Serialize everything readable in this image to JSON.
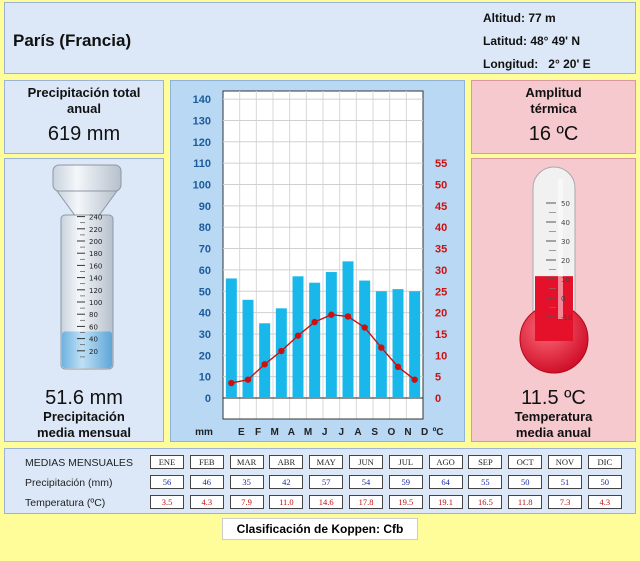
{
  "location": {
    "city": "París (Francia)",
    "altitud": "Altitud: 77 m",
    "latitud": "Latitud: 48° 49' N",
    "longitud": "Longitud:   2° 20' E"
  },
  "precip_total": {
    "label1": "Precipitación total",
    "label2": "anual",
    "value": "619 mm"
  },
  "amplitud": {
    "label1": "Amplitud",
    "label2": "térmica",
    "value": "16 ºC"
  },
  "precip_media": {
    "value": "51.6 mm",
    "label1": "Precipitación",
    "label2": "media mensual"
  },
  "temp_media": {
    "value": "11.5 ºC",
    "label1": "Temperatura",
    "label2": "media anual"
  },
  "rain_gauge": {
    "ticks": [
      "240",
      "220",
      "200",
      "180",
      "160",
      "140",
      "120",
      "100",
      "80",
      "60",
      "40",
      "20"
    ],
    "level_mm": 51.6
  },
  "thermometer": {
    "ticks": [
      "50",
      "40",
      "30",
      "20",
      "10",
      "0",
      "-10"
    ],
    "level_c": 11.5
  },
  "chart_data": {
    "type": "bar+line",
    "categories": [
      "E",
      "F",
      "M",
      "A",
      "M",
      "J",
      "J",
      "A",
      "S",
      "O",
      "N",
      "D"
    ],
    "series": [
      {
        "values": [
          56,
          46,
          35,
          42,
          57,
          54,
          59,
          64,
          55,
          50,
          51,
          50
        ],
        "axis": "left",
        "kind": "bar",
        "unit": "mm"
      },
      {
        "values": [
          3.5,
          4.3,
          7.9,
          11.0,
          14.6,
          17.8,
          19.5,
          19.1,
          16.5,
          11.8,
          7.3,
          4.3
        ],
        "axis": "right",
        "kind": "line",
        "unit": "ºC"
      }
    ],
    "left_axis": {
      "ticks": [
        "0",
        "10",
        "20",
        "30",
        "40",
        "50",
        "60",
        "70",
        "80",
        "90",
        "100",
        "110",
        "120",
        "130",
        "140"
      ],
      "unit_label": "mm",
      "range": [
        0,
        140
      ]
    },
    "right_axis": {
      "ticks": [
        "0",
        "5",
        "10",
        "15",
        "20",
        "25",
        "30",
        "35",
        "40",
        "45",
        "50",
        "55"
      ],
      "unit_label": "ºC",
      "range": [
        0,
        70
      ]
    },
    "colors": {
      "bar": "#1ab8ea",
      "line": "#cc1010",
      "left_axis_text": "#1c5b9c",
      "right_axis_text": "#cc1010"
    }
  },
  "table": {
    "title": "MEDIAS MENSUALES",
    "row_precip": "Precipitación (mm)",
    "row_temp": "Temperatura (ºC)",
    "months": [
      "ENE",
      "FEB",
      "MAR",
      "ABR",
      "MAY",
      "JUN",
      "JUL",
      "AGO",
      "SEP",
      "OCT",
      "NOV",
      "DIC"
    ],
    "precip": [
      "56",
      "46",
      "35",
      "42",
      "57",
      "54",
      "59",
      "64",
      "55",
      "50",
      "51",
      "50"
    ],
    "temp": [
      "3.5",
      "4.3",
      "7.9",
      "11.0",
      "14.6",
      "17.8",
      "19.5",
      "19.1",
      "16.5",
      "11.8",
      "7.3",
      "4.3"
    ]
  },
  "koppen": "Clasificación de Koppen: Cfb"
}
